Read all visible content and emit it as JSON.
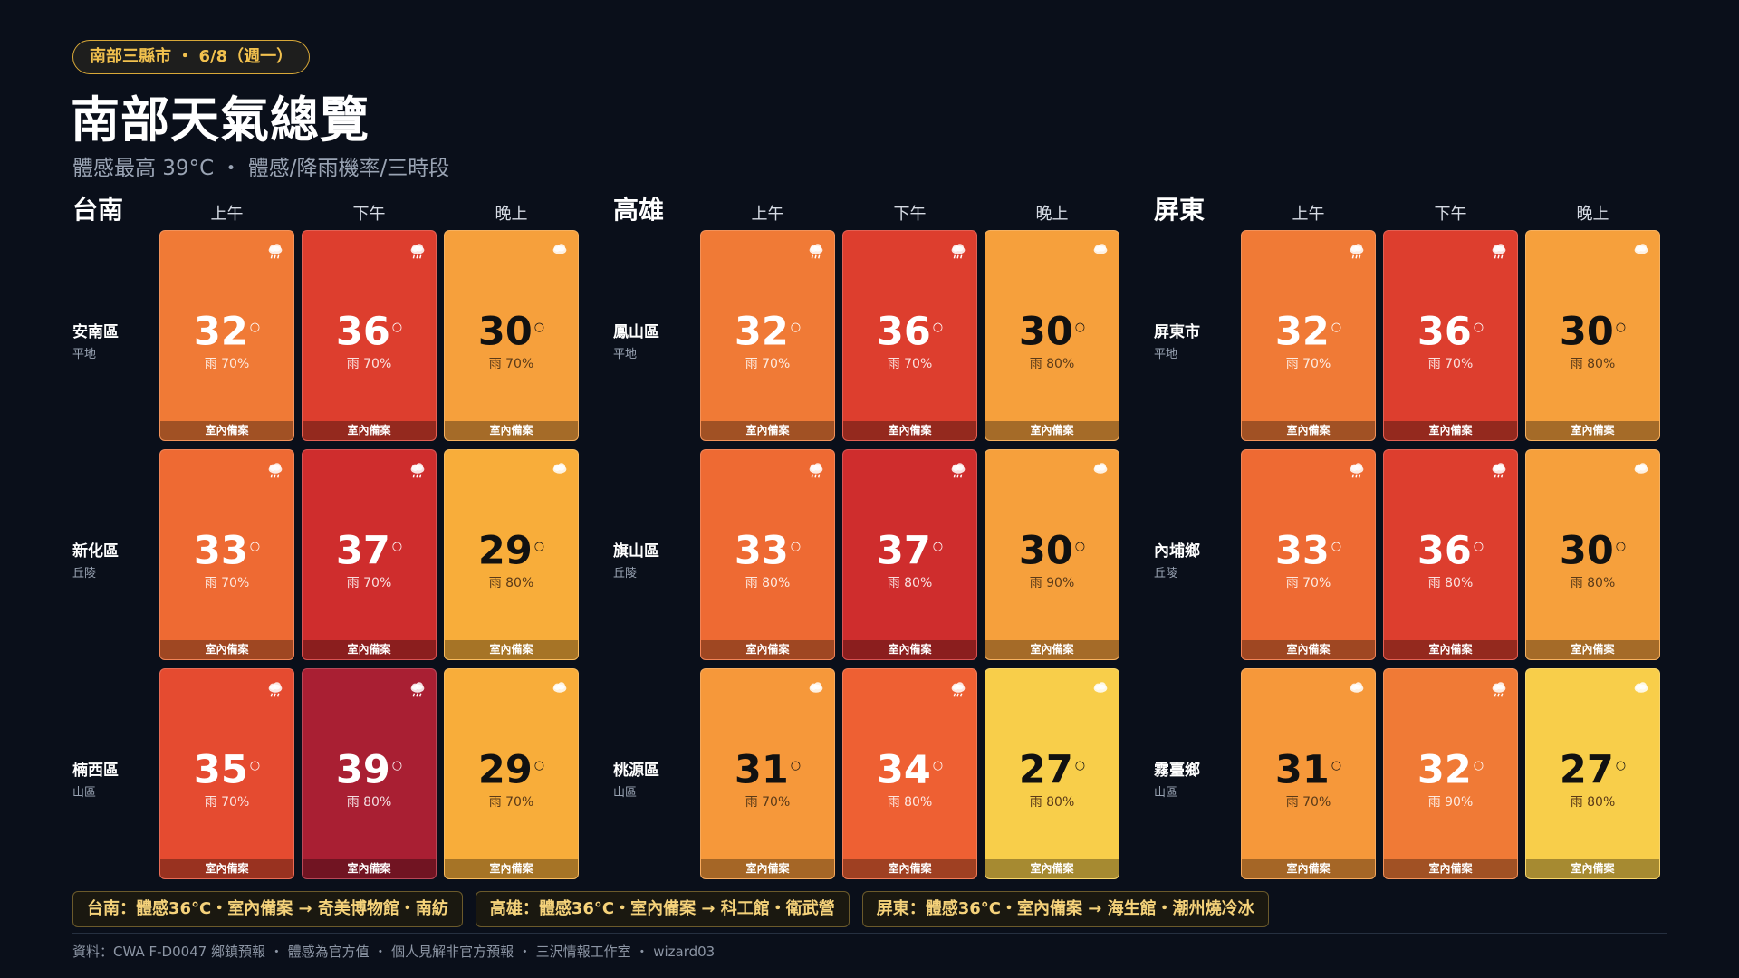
{
  "header": {
    "badge": "南部三縣市 ・ 6/8（週一）",
    "title": "南部天氣總覽",
    "subtitle": "體感最高 39°C ・ 體感/降雨機率/三時段"
  },
  "regions": [
    {
      "name": "台南",
      "periods": [
        "上午",
        "下午",
        "晚上"
      ],
      "rows": [
        {
          "name": "安南區",
          "terrain": "平地",
          "cells": [
            {
              "temp": "32",
              "rain": "雨 70%",
              "plan": "室內備案",
              "color": "#f07a36",
              "icon": "rain-cloud-icon"
            },
            {
              "temp": "36",
              "rain": "雨 70%",
              "plan": "室內備案",
              "color": "#dd3e2e",
              "icon": "rain-cloud-icon"
            },
            {
              "temp": "30",
              "rain": "雨 70%",
              "plan": "室內備案",
              "color": "#f6a03c",
              "icon": "cloud-icon"
            }
          ]
        },
        {
          "name": "新化區",
          "terrain": "丘陵",
          "cells": [
            {
              "temp": "33",
              "rain": "雨 70%",
              "plan": "室內備案",
              "color": "#ee6a33",
              "icon": "rain-cloud-icon"
            },
            {
              "temp": "37",
              "rain": "雨 70%",
              "plan": "室內備案",
              "color": "#cf2d2d",
              "icon": "rain-cloud-icon"
            },
            {
              "temp": "29",
              "rain": "雨 80%",
              "plan": "室內備案",
              "color": "#f8ad3a",
              "icon": "cloud-icon"
            }
          ]
        },
        {
          "name": "楠西區",
          "terrain": "山區",
          "cells": [
            {
              "temp": "35",
              "rain": "雨 70%",
              "plan": "室內備案",
              "color": "#e54b30",
              "icon": "rain-cloud-icon"
            },
            {
              "temp": "39",
              "rain": "雨 80%",
              "plan": "室內備案",
              "color": "#a91f33",
              "icon": "rain-cloud-icon"
            },
            {
              "temp": "29",
              "rain": "雨 70%",
              "plan": "室內備案",
              "color": "#f8ad3a",
              "icon": "cloud-icon"
            }
          ]
        }
      ]
    },
    {
      "name": "高雄",
      "periods": [
        "上午",
        "下午",
        "晚上"
      ],
      "rows": [
        {
          "name": "鳳山區",
          "terrain": "平地",
          "cells": [
            {
              "temp": "32",
              "rain": "雨 70%",
              "plan": "室內備案",
              "color": "#f07a36",
              "icon": "rain-cloud-icon"
            },
            {
              "temp": "36",
              "rain": "雨 70%",
              "plan": "室內備案",
              "color": "#dd3e2e",
              "icon": "rain-cloud-icon"
            },
            {
              "temp": "30",
              "rain": "雨 80%",
              "plan": "室內備案",
              "color": "#f6a03c",
              "icon": "cloud-icon"
            }
          ]
        },
        {
          "name": "旗山區",
          "terrain": "丘陵",
          "cells": [
            {
              "temp": "33",
              "rain": "雨 80%",
              "plan": "室內備案",
              "color": "#ee6a33",
              "icon": "rain-cloud-icon"
            },
            {
              "temp": "37",
              "rain": "雨 80%",
              "plan": "室內備案",
              "color": "#cf2d2d",
              "icon": "rain-cloud-icon"
            },
            {
              "temp": "30",
              "rain": "雨 90%",
              "plan": "室內備案",
              "color": "#f6a03c",
              "icon": "cloud-icon"
            }
          ]
        },
        {
          "name": "桃源區",
          "terrain": "山區",
          "cells": [
            {
              "temp": "31",
              "rain": "雨 70%",
              "plan": "室內備案",
              "color": "#f6983a",
              "icon": "cloud-icon"
            },
            {
              "temp": "34",
              "rain": "雨 80%",
              "plan": "室內備案",
              "color": "#ee6033",
              "icon": "rain-cloud-icon"
            },
            {
              "temp": "27",
              "rain": "雨 80%",
              "plan": "室內備案",
              "color": "#f8ce4a",
              "icon": "cloud-icon"
            }
          ]
        }
      ]
    },
    {
      "name": "屏東",
      "periods": [
        "上午",
        "下午",
        "晚上"
      ],
      "rows": [
        {
          "name": "屏東市",
          "terrain": "平地",
          "cells": [
            {
              "temp": "32",
              "rain": "雨 70%",
              "plan": "室內備案",
              "color": "#f07a36",
              "icon": "rain-cloud-icon"
            },
            {
              "temp": "36",
              "rain": "雨 70%",
              "plan": "室內備案",
              "color": "#dd3e2e",
              "icon": "rain-cloud-icon"
            },
            {
              "temp": "30",
              "rain": "雨 80%",
              "plan": "室內備案",
              "color": "#f6a03c",
              "icon": "cloud-icon"
            }
          ]
        },
        {
          "name": "內埔鄉",
          "terrain": "丘陵",
          "cells": [
            {
              "temp": "33",
              "rain": "雨 70%",
              "plan": "室內備案",
              "color": "#ee6a33",
              "icon": "rain-cloud-icon"
            },
            {
              "temp": "36",
              "rain": "雨 80%",
              "plan": "室內備案",
              "color": "#dd3e2e",
              "icon": "rain-cloud-icon"
            },
            {
              "temp": "30",
              "rain": "雨 80%",
              "plan": "室內備案",
              "color": "#f6a03c",
              "icon": "cloud-icon"
            }
          ]
        },
        {
          "name": "霧臺鄉",
          "terrain": "山區",
          "cells": [
            {
              "temp": "31",
              "rain": "雨 70%",
              "plan": "室內備案",
              "color": "#f6983a",
              "icon": "cloud-icon"
            },
            {
              "temp": "32",
              "rain": "雨 90%",
              "plan": "室內備案",
              "color": "#f07a36",
              "icon": "rain-cloud-icon"
            },
            {
              "temp": "27",
              "rain": "雨 80%",
              "plan": "室內備案",
              "color": "#f8ce4a",
              "icon": "cloud-icon"
            }
          ]
        }
      ]
    }
  ],
  "tips": [
    "台南：體感36°C・室內備案 → 奇美博物館・南紡",
    "高雄：體感36°C・室內備案 → 科工館・衛武營",
    "屏東：體感36°C・室內備案 → 海生館・潮州燒冷冰"
  ],
  "footer": "資料：CWA F-D0047 鄉鎮預報 ・ 體感為官方值 ・ 個人見解非官方預報 ・ 三沢情報工作室 ・ wizard03"
}
